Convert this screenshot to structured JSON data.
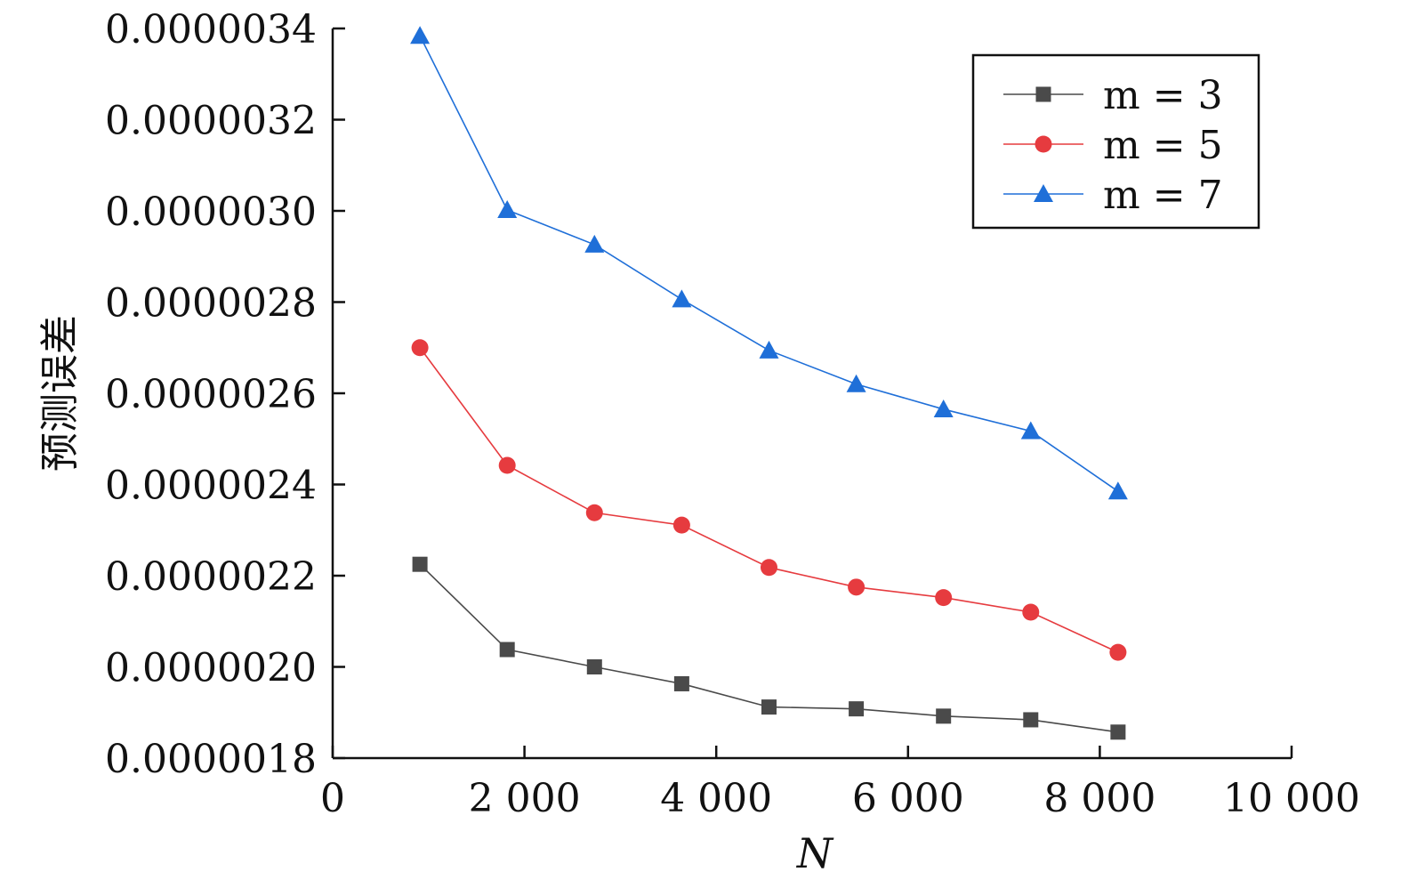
{
  "chart_data": {
    "type": "line",
    "xlabel": "N",
    "ylabel": "预测误差",
    "xlim": [
      0,
      10000
    ],
    "ylim": [
      1.8e-06,
      3.4e-06
    ],
    "x_ticks": [
      {
        "value": 0,
        "label": "0"
      },
      {
        "value": 2000,
        "label": "2 000"
      },
      {
        "value": 4000,
        "label": "4 000"
      },
      {
        "value": 6000,
        "label": "6 000"
      },
      {
        "value": 8000,
        "label": "8 000"
      },
      {
        "value": 10000,
        "label": "10 000"
      }
    ],
    "y_ticks": [
      {
        "value": 1.8e-06,
        "label": "0.0000018"
      },
      {
        "value": 2e-06,
        "label": "0.0000020"
      },
      {
        "value": 2.2e-06,
        "label": "0.0000022"
      },
      {
        "value": 2.4e-06,
        "label": "0.0000024"
      },
      {
        "value": 2.6e-06,
        "label": "0.0000026"
      },
      {
        "value": 2.8e-06,
        "label": "0.0000028"
      },
      {
        "value": 3e-06,
        "label": "0.0000030"
      },
      {
        "value": 3.2e-06,
        "label": "0.0000032"
      },
      {
        "value": 3.4e-06,
        "label": "0.0000034"
      }
    ],
    "grid": false,
    "legend_position": "top-right",
    "x": [
      910,
      1820,
      2730,
      3640,
      4550,
      5460,
      6370,
      7280,
      8190
    ],
    "series": [
      {
        "name": "m = 3",
        "color": "#4a4a4a",
        "marker": "square",
        "values": [
          2.225e-06,
          2.038e-06,
          2e-06,
          1.963e-06,
          1.912e-06,
          1.908e-06,
          1.892e-06,
          1.884e-06,
          1.857e-06
        ]
      },
      {
        "name": "m = 5",
        "color": "#e63b3f",
        "marker": "circle",
        "values": [
          2.7e-06,
          2.442e-06,
          2.338e-06,
          2.311e-06,
          2.218e-06,
          2.175e-06,
          2.152e-06,
          2.12e-06,
          2.032e-06
        ]
      },
      {
        "name": "m = 7",
        "color": "#1f6fd8",
        "marker": "triangle",
        "values": [
          3.384e-06,
          3.002e-06,
          2.926e-06,
          2.806e-06,
          2.694e-06,
          2.62e-06,
          2.565e-06,
          2.517e-06,
          2.385e-06
        ]
      }
    ]
  }
}
